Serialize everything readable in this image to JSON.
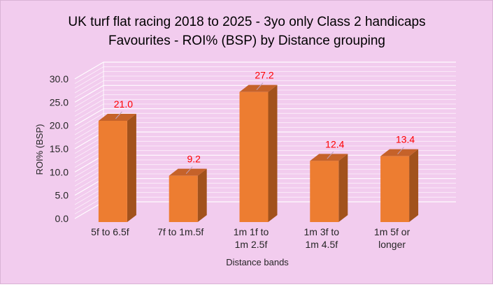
{
  "chart_data": {
    "type": "bar",
    "title_lines": [
      "UK turf flat racing 2018 to 2025 - 3yo only Class 2 handicaps",
      "Favourites - ROI% (BSP) by Distance grouping"
    ],
    "xlabel": "Distance bands",
    "ylabel": "ROI% (BSP)",
    "categories": [
      [
        "5f to 6.5f"
      ],
      [
        "7f to 1m.5f"
      ],
      [
        "1m 1f to",
        "1m 2.5f"
      ],
      [
        "1m 3f to",
        "1m 4.5f"
      ],
      [
        "1m 5f or",
        "longer"
      ]
    ],
    "values": [
      21.0,
      9.2,
      27.2,
      12.4,
      13.4
    ],
    "data_labels": [
      "21.0",
      "9.2",
      "27.2",
      "12.4",
      "13.4"
    ],
    "y_ticks": [
      "0.0",
      "5.0",
      "10.0",
      "15.0",
      "20.0",
      "25.0",
      "30.0"
    ],
    "ylim": [
      0,
      30
    ],
    "grid": true,
    "legend": "none",
    "style_3d": true,
    "colors": {
      "background": "#f2ccee",
      "bar_front": "#ed7d31",
      "bar_side": "#a2521c",
      "bar_top": "#c5622a",
      "label_color": "#ff0000",
      "gridline": "#ffffff",
      "text": "#262626"
    }
  }
}
